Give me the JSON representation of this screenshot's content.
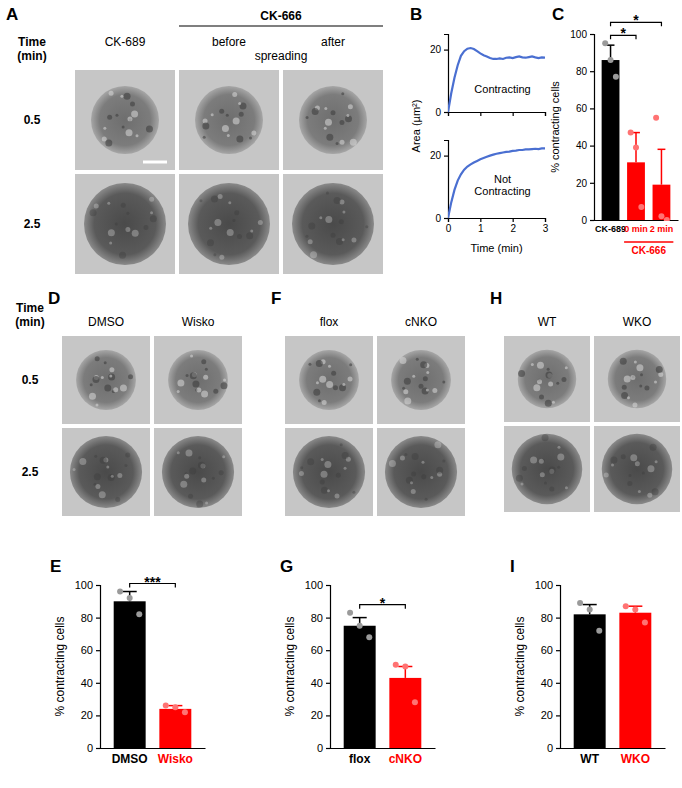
{
  "images": [
    {
      "title": "A",
      "time_label": [
        "Time",
        "(min)"
      ],
      "times": [
        0.5,
        2.5
      ],
      "columns": [
        "CK-689",
        "before",
        "after"
      ],
      "group": {
        "label": "CK-666",
        "from": 1,
        "to": 2,
        "sub": "spreading"
      }
    },
    {
      "title": "D",
      "time_label": [
        "Time",
        "(min)"
      ],
      "times": [
        0.5,
        2.5
      ],
      "columns": [
        "DMSO",
        "Wisko"
      ]
    },
    {
      "title": "F",
      "columns": [
        "flox",
        "cNKO"
      ]
    },
    {
      "title": "H",
      "columns": [
        "WT",
        "WKO"
      ]
    }
  ],
  "chart_data": [
    {
      "type": "line",
      "title": "B",
      "x": [
        0,
        0.1,
        0.2,
        0.3,
        0.4,
        0.5,
        0.6,
        0.7,
        0.8,
        0.9,
        1.0,
        1.1,
        1.2,
        1.3,
        1.4,
        1.5,
        1.6,
        1.7,
        1.8,
        1.9,
        2.0,
        2.1,
        2.2,
        2.3,
        2.4,
        2.5,
        2.6,
        2.7,
        2.8,
        2.9,
        3.0
      ],
      "values": [
        0,
        6,
        11,
        15,
        18,
        19.5,
        20.3,
        20.5,
        20.2,
        19.5,
        18.8,
        18.2,
        17.8,
        17.3,
        17.0,
        17.0,
        17.2,
        17.0,
        17.4,
        17.5,
        17.3,
        17.6,
        17.8,
        17.5,
        17.4,
        17.6,
        17.8,
        17.5,
        17.3,
        17.5,
        17.4
      ],
      "color": "#4a6fd1",
      "ylabel": "Area (µm²)",
      "xlim": [
        0,
        3
      ],
      "xticks": [
        0,
        1,
        2,
        3
      ],
      "ylim": [
        0,
        25
      ],
      "yticks": [
        0,
        20
      ],
      "tick_labels": "y",
      "annotations": [
        "Contracting"
      ]
    },
    {
      "type": "line",
      "x": [
        0,
        0.1,
        0.2,
        0.3,
        0.4,
        0.5,
        0.6,
        0.7,
        0.8,
        0.9,
        1.0,
        1.1,
        1.2,
        1.3,
        1.4,
        1.5,
        1.6,
        1.7,
        1.8,
        1.9,
        2.0,
        2.1,
        2.2,
        2.3,
        2.4,
        2.5,
        2.6,
        2.7,
        2.8,
        2.9,
        3.0
      ],
      "values": [
        0,
        5,
        9,
        12,
        14,
        15.5,
        16.5,
        17.2,
        17.8,
        18.3,
        18.8,
        19.2,
        19.6,
        20.0,
        20.3,
        20.6,
        20.8,
        21.0,
        21.2,
        21.3,
        21.5,
        21.6,
        21.8,
        21.8,
        22.0,
        22.0,
        22.1,
        22.2,
        22.1,
        22.3,
        22.3
      ],
      "color": "#4a6fd1",
      "xlabel": "Time (min)",
      "xlim": [
        0,
        3
      ],
      "xticks": [
        0,
        1,
        2,
        3
      ],
      "ylim": [
        0,
        25
      ],
      "yticks": [
        0,
        20
      ],
      "annotations": [
        "Not",
        "Contracting"
      ]
    },
    {
      "type": "bar",
      "title": "C",
      "categories": [
        "CK-689",
        "0 min",
        "2 min"
      ],
      "values": [
        86,
        31,
        19
      ],
      "errors": [
        8,
        16,
        19
      ],
      "points": [
        [
          95,
          86,
          77
        ],
        [
          47,
          39,
          7
        ],
        [
          55,
          2,
          0
        ]
      ],
      "colors": [
        "#000000",
        "#ff0000",
        "#ff0000"
      ],
      "ylabel": "% contracting cells",
      "ylim": [
        0,
        100
      ],
      "yticks": [
        0,
        20,
        40,
        60,
        80,
        100
      ],
      "group": {
        "label": "CK-666",
        "from": 1,
        "to": 2
      },
      "annotations": [
        {
          "text": "*",
          "from": 0,
          "to": 1
        },
        {
          "text": "*",
          "from": 0,
          "to": 2
        }
      ]
    },
    {
      "type": "bar",
      "title": "E",
      "categories": [
        "DMSO",
        "Wisko"
      ],
      "values": [
        90,
        24
      ],
      "errors": [
        6,
        2
      ],
      "points": [
        [
          96,
          92,
          82
        ],
        [
          26,
          25,
          22
        ]
      ],
      "colors": [
        "#000000",
        "#ff0000"
      ],
      "ylabel": "% contracting cells",
      "ylim": [
        0,
        100
      ],
      "yticks": [
        0,
        20,
        40,
        60,
        80,
        100
      ],
      "annotations": [
        {
          "text": "***",
          "from": 0,
          "to": 1
        }
      ]
    },
    {
      "type": "bar",
      "title": "G",
      "categories": [
        "flox",
        "cNKO"
      ],
      "values": [
        75,
        43
      ],
      "errors": [
        5,
        7
      ],
      "points": [
        [
          83,
          75,
          68
        ],
        [
          51,
          50,
          28
        ]
      ],
      "colors": [
        "#000000",
        "#ff0000"
      ],
      "ylabel": "% contracting cells",
      "ylim": [
        0,
        100
      ],
      "yticks": [
        0,
        20,
        40,
        60,
        80,
        100
      ],
      "annotations": [
        {
          "text": "*",
          "from": 0,
          "to": 1
        }
      ]
    },
    {
      "type": "bar",
      "title": "I",
      "categories": [
        "WT",
        "WKO"
      ],
      "values": [
        82,
        83
      ],
      "errors": [
        6,
        4
      ],
      "points": [
        [
          89,
          85,
          72
        ],
        [
          87,
          85,
          77
        ]
      ],
      "colors": [
        "#000000",
        "#ff0000"
      ],
      "ylabel": "% contracting cells",
      "ylim": [
        0,
        100
      ],
      "yticks": [
        0,
        20,
        40,
        60,
        80,
        100
      ]
    }
  ]
}
